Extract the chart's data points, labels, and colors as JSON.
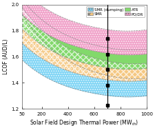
{
  "x_min": 50,
  "x_max": 1000,
  "y_min": 1.2,
  "y_max": 2.0,
  "xlabel": "Solar Field Design Thermal Power (MW$_{th}$)",
  "ylabel": "LCOF (AUD/L)",
  "y_ticks": [
    1.2,
    1.4,
    1.6,
    1.8,
    2.0
  ],
  "vertical_line_x": 700,
  "vertical_line_points_y": [
    1.23,
    1.38,
    1.5,
    1.62,
    1.74
  ],
  "bands": [
    {
      "label": "SMR (dumping)",
      "color": "#7dd4f5",
      "hatch": ".....",
      "lo_at50": 1.575,
      "lo_atmin": 1.255,
      "lo_rise": 0.025,
      "hi_at50": 1.925,
      "hi_atmin": 1.375,
      "hi_rise": 0.025
    },
    {
      "label": "SMR",
      "color": "#f5c882",
      "hatch": "xxxx",
      "lo_at50": 1.705,
      "lo_atmin": 1.375,
      "lo_rise": 0.025,
      "hi_at50": 1.98,
      "hi_atmin": 1.495,
      "hi_rise": 0.025
    },
    {
      "label": "ATR",
      "color": "#82d96b",
      "hatch": "",
      "lo_at50": 1.815,
      "lo_atmin": 1.465,
      "lo_rise": 0.025,
      "hi_at50": 2.04,
      "hi_atmin": 1.605,
      "hi_rise": 0.025
    },
    {
      "label": "PO/DR",
      "color": "#f0a0c8",
      "hatch": ".....",
      "lo_at50": 1.925,
      "lo_atmin": 1.575,
      "lo_rise": 0.025,
      "hi_at50": 2.12,
      "hi_atmin": 1.755,
      "hi_rise": 0.03
    }
  ]
}
